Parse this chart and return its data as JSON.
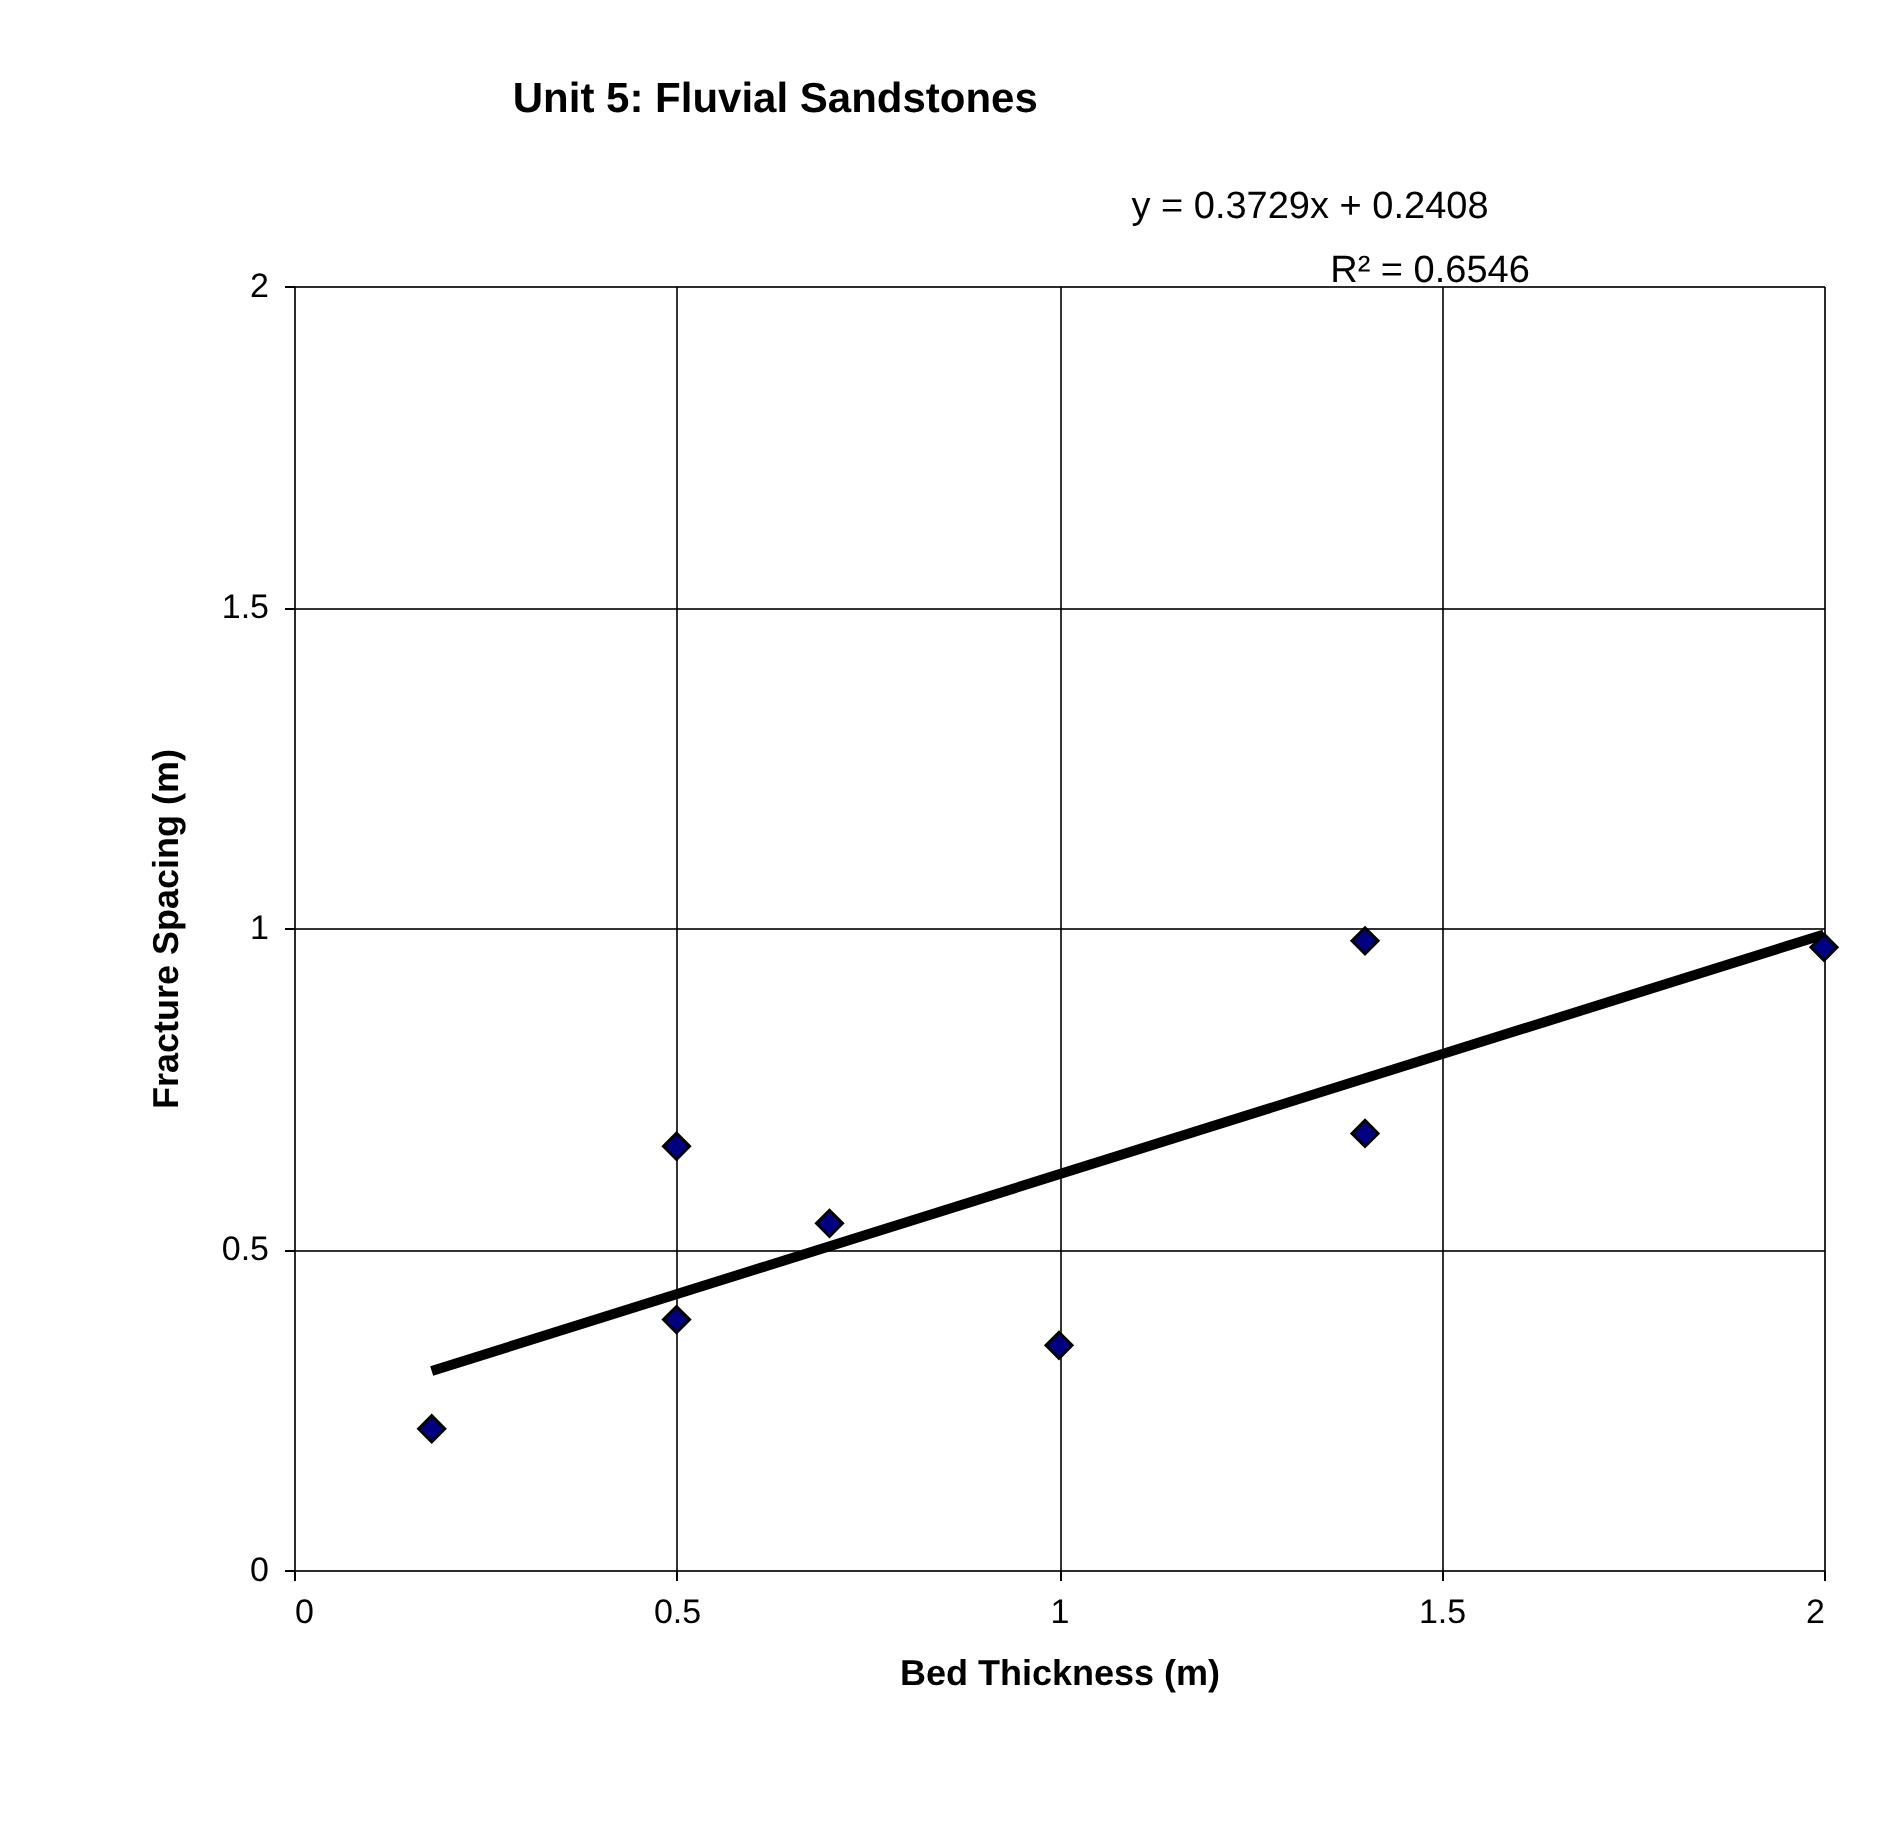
{
  "chart_data": {
    "type": "scatter",
    "title": "Unit 5: Fluvial Sandstones",
    "xlabel": "Bed Thickness (m)",
    "ylabel": "Fracture Spacing (m)",
    "x": [
      0.18,
      0.5,
      0.5,
      0.7,
      1.0,
      1.4,
      1.4,
      2.0
    ],
    "series": [
      {
        "type": "scatter",
        "color": "#000080",
        "values": [
          0.22,
          0.66,
          0.39,
          0.54,
          0.35,
          0.98,
          0.68,
          0.97
        ],
        "marker": "diamond"
      },
      {
        "type": "line",
        "color": "#000000",
        "x": [
          0.18,
          2.0
        ],
        "values": [
          0.31,
          0.99
        ],
        "line_style": "solid"
      }
    ],
    "xlim": [
      0,
      2
    ],
    "ylim": [
      0,
      2
    ],
    "xticks": [
      0,
      0.5,
      1,
      1.5,
      2
    ],
    "yticks": [
      0,
      0.5,
      1,
      1.5,
      2
    ],
    "grid": true,
    "annotations": [
      "y = 0.3729x + 0.2408",
      "R² = 0.6546"
    ]
  }
}
